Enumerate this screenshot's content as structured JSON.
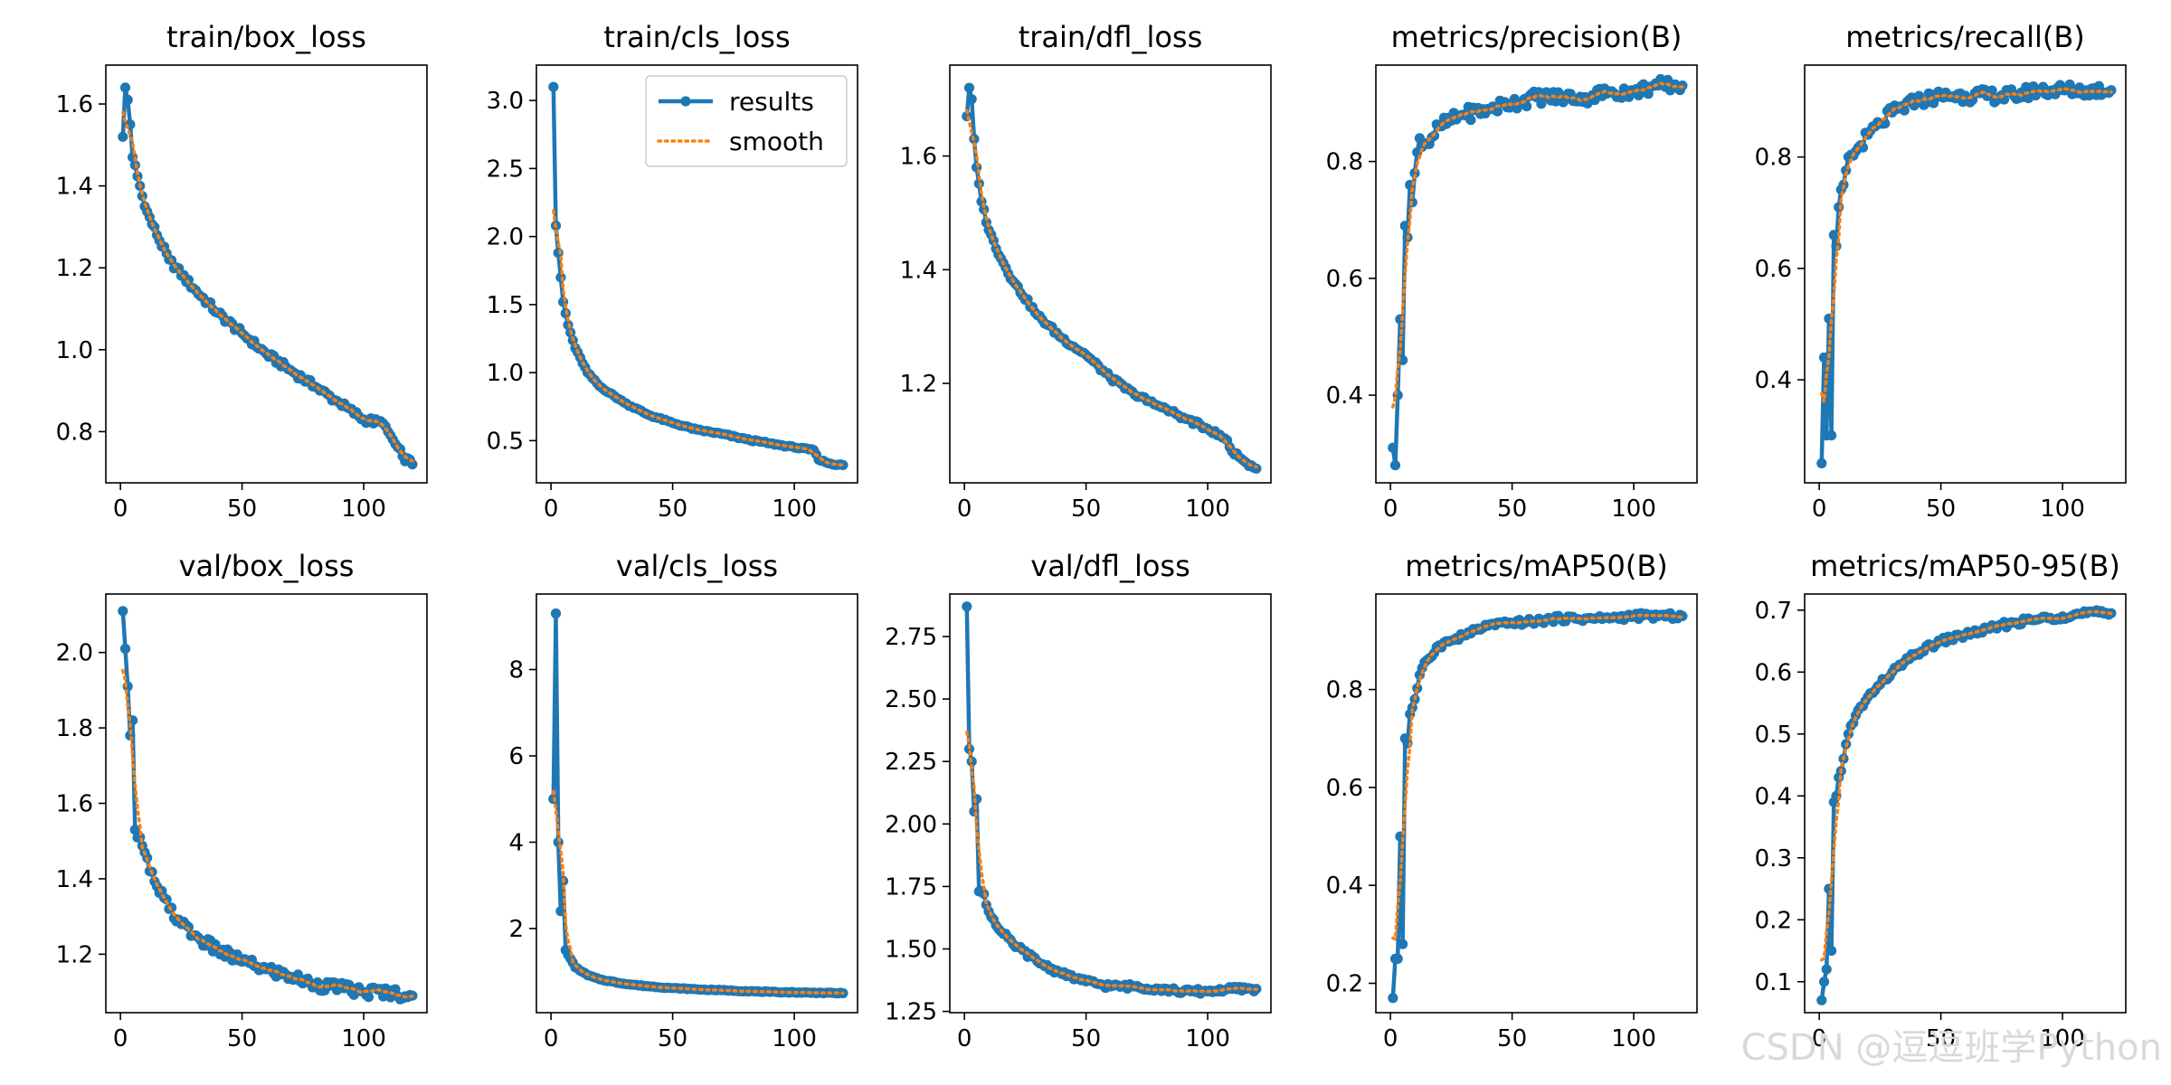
{
  "colors": {
    "results": "#1f77b4",
    "smooth": "#ff7f0e"
  },
  "watermark": "CSDN @逗逗班学Python",
  "legend": {
    "entries": [
      "results",
      "smooth"
    ],
    "placement": "upper-right",
    "panel": 1
  },
  "chart_data": [
    {
      "type": "line",
      "title": "train/box_loss",
      "xlim": [
        -6,
        126
      ],
      "ylim": [
        0.675,
        1.695
      ],
      "xticks": [
        0,
        50,
        100
      ],
      "yticks": [
        0.8,
        1.0,
        1.2,
        1.4,
        1.6
      ],
      "ytick_labels": [
        "0.8",
        "1.0",
        "1.2",
        "1.4",
        "1.6"
      ],
      "x_end": 120,
      "anchors": [
        [
          1,
          1.52
        ],
        [
          2,
          1.64
        ],
        [
          3,
          1.61
        ],
        [
          4,
          1.55
        ],
        [
          5,
          1.47
        ],
        [
          8,
          1.4
        ],
        [
          10,
          1.35
        ],
        [
          15,
          1.28
        ],
        [
          20,
          1.22
        ],
        [
          30,
          1.15
        ],
        [
          40,
          1.09
        ],
        [
          50,
          1.04
        ],
        [
          60,
          0.99
        ],
        [
          70,
          0.95
        ],
        [
          80,
          0.91
        ],
        [
          90,
          0.87
        ],
        [
          100,
          0.83
        ],
        [
          108,
          0.82
        ],
        [
          110,
          0.8
        ],
        [
          113,
          0.77
        ],
        [
          116,
          0.74
        ],
        [
          120,
          0.72
        ]
      ],
      "noise": 0.008
    },
    {
      "type": "line",
      "title": "train/cls_loss",
      "xlim": [
        -6,
        126
      ],
      "ylim": [
        0.19,
        3.26
      ],
      "xticks": [
        0,
        50,
        100
      ],
      "yticks": [
        0.5,
        1.0,
        1.5,
        2.0,
        2.5,
        3.0
      ],
      "ytick_labels": [
        "0.5",
        "1.0",
        "1.5",
        "2.0",
        "2.5",
        "3.0"
      ],
      "x_end": 120,
      "anchors": [
        [
          1,
          3.1
        ],
        [
          2,
          2.08
        ],
        [
          3,
          1.88
        ],
        [
          4,
          1.7
        ],
        [
          5,
          1.52
        ],
        [
          7,
          1.35
        ],
        [
          10,
          1.18
        ],
        [
          15,
          1.0
        ],
        [
          20,
          0.9
        ],
        [
          30,
          0.78
        ],
        [
          40,
          0.69
        ],
        [
          50,
          0.63
        ],
        [
          60,
          0.58
        ],
        [
          70,
          0.55
        ],
        [
          80,
          0.51
        ],
        [
          90,
          0.48
        ],
        [
          100,
          0.45
        ],
        [
          108,
          0.43
        ],
        [
          110,
          0.36
        ],
        [
          115,
          0.33
        ],
        [
          120,
          0.32
        ]
      ],
      "noise": 0.006
    },
    {
      "type": "line",
      "title": "train/dfl_loss",
      "xlim": [
        -6,
        126
      ],
      "ylim": [
        1.025,
        1.76
      ],
      "xticks": [
        0,
        50,
        100
      ],
      "yticks": [
        1.2,
        1.4,
        1.6
      ],
      "ytick_labels": [
        "1.2",
        "1.4",
        "1.6"
      ],
      "x_end": 120,
      "anchors": [
        [
          1,
          1.67
        ],
        [
          2,
          1.72
        ],
        [
          3,
          1.7
        ],
        [
          4,
          1.63
        ],
        [
          5,
          1.58
        ],
        [
          7,
          1.52
        ],
        [
          10,
          1.47
        ],
        [
          15,
          1.42
        ],
        [
          20,
          1.38
        ],
        [
          30,
          1.32
        ],
        [
          40,
          1.28
        ],
        [
          50,
          1.25
        ],
        [
          60,
          1.21
        ],
        [
          70,
          1.18
        ],
        [
          80,
          1.16
        ],
        [
          90,
          1.14
        ],
        [
          100,
          1.12
        ],
        [
          108,
          1.1
        ],
        [
          110,
          1.08
        ],
        [
          113,
          1.07
        ],
        [
          116,
          1.06
        ],
        [
          120,
          1.05
        ]
      ],
      "noise": 0.004
    },
    {
      "type": "line",
      "title": "metrics/precision(B)",
      "xlim": [
        -6,
        126
      ],
      "ylim": [
        0.25,
        0.965
      ],
      "xticks": [
        0,
        50,
        100
      ],
      "yticks": [
        0.4,
        0.6,
        0.8
      ],
      "ytick_labels": [
        "0.4",
        "0.6",
        "0.8"
      ],
      "x_end": 120,
      "anchors": [
        [
          1,
          0.31
        ],
        [
          2,
          0.28
        ],
        [
          3,
          0.4
        ],
        [
          4,
          0.53
        ],
        [
          5,
          0.46
        ],
        [
          6,
          0.69
        ],
        [
          7,
          0.67
        ],
        [
          8,
          0.76
        ],
        [
          9,
          0.73
        ],
        [
          10,
          0.78
        ],
        [
          12,
          0.84
        ],
        [
          15,
          0.83
        ],
        [
          20,
          0.86
        ],
        [
          25,
          0.87
        ],
        [
          30,
          0.88
        ],
        [
          40,
          0.89
        ],
        [
          50,
          0.9
        ],
        [
          60,
          0.91
        ],
        [
          70,
          0.91
        ],
        [
          80,
          0.91
        ],
        [
          90,
          0.92
        ],
        [
          100,
          0.92
        ],
        [
          110,
          0.93
        ],
        [
          120,
          0.93
        ]
      ],
      "noise": 0.012
    },
    {
      "type": "line",
      "title": "metrics/recall(B)",
      "xlim": [
        -6,
        126
      ],
      "ylim": [
        0.215,
        0.965
      ],
      "xticks": [
        0,
        50,
        100
      ],
      "yticks": [
        0.4,
        0.6,
        0.8
      ],
      "ytick_labels": [
        "0.4",
        "0.6",
        "0.8"
      ],
      "x_end": 120,
      "anchors": [
        [
          1,
          0.25
        ],
        [
          2,
          0.44
        ],
        [
          3,
          0.3
        ],
        [
          4,
          0.51
        ],
        [
          5,
          0.3
        ],
        [
          6,
          0.66
        ],
        [
          7,
          0.64
        ],
        [
          8,
          0.71
        ],
        [
          10,
          0.75
        ],
        [
          12,
          0.8
        ],
        [
          15,
          0.81
        ],
        [
          20,
          0.84
        ],
        [
          25,
          0.86
        ],
        [
          30,
          0.88
        ],
        [
          40,
          0.9
        ],
        [
          50,
          0.91
        ],
        [
          60,
          0.91
        ],
        [
          70,
          0.91
        ],
        [
          80,
          0.91
        ],
        [
          90,
          0.92
        ],
        [
          100,
          0.92
        ],
        [
          110,
          0.92
        ],
        [
          120,
          0.92
        ]
      ],
      "noise": 0.012
    },
    {
      "type": "line",
      "title": "val/box_loss",
      "xlim": [
        -6,
        126
      ],
      "ylim": [
        1.045,
        2.155
      ],
      "xticks": [
        0,
        50,
        100
      ],
      "yticks": [
        1.2,
        1.4,
        1.6,
        1.8,
        2.0
      ],
      "ytick_labels": [
        "1.2",
        "1.4",
        "1.6",
        "1.8",
        "2.0"
      ],
      "x_end": 120,
      "anchors": [
        [
          1,
          2.11
        ],
        [
          2,
          2.01
        ],
        [
          3,
          1.91
        ],
        [
          4,
          1.78
        ],
        [
          5,
          1.82
        ],
        [
          6,
          1.53
        ],
        [
          8,
          1.51
        ],
        [
          10,
          1.47
        ],
        [
          12,
          1.42
        ],
        [
          15,
          1.38
        ],
        [
          20,
          1.32
        ],
        [
          25,
          1.28
        ],
        [
          30,
          1.25
        ],
        [
          40,
          1.21
        ],
        [
          50,
          1.18
        ],
        [
          60,
          1.16
        ],
        [
          70,
          1.14
        ],
        [
          80,
          1.12
        ],
        [
          90,
          1.11
        ],
        [
          100,
          1.1
        ],
        [
          110,
          1.1
        ],
        [
          120,
          1.09
        ]
      ],
      "noise": 0.015
    },
    {
      "type": "line",
      "title": "val/cls_loss",
      "xlim": [
        -6,
        126
      ],
      "ylim": [
        0.05,
        9.75
      ],
      "xticks": [
        0,
        50,
        100
      ],
      "yticks": [
        2,
        4,
        6,
        8
      ],
      "ytick_labels": [
        "2",
        "4",
        "6",
        "8"
      ],
      "x_end": 120,
      "anchors": [
        [
          1,
          5.0
        ],
        [
          2,
          9.3
        ],
        [
          3,
          4.0
        ],
        [
          4,
          2.4
        ],
        [
          5,
          3.1
        ],
        [
          6,
          1.5
        ],
        [
          8,
          1.3
        ],
        [
          10,
          1.1
        ],
        [
          15,
          0.92
        ],
        [
          20,
          0.82
        ],
        [
          30,
          0.72
        ],
        [
          40,
          0.66
        ],
        [
          50,
          0.62
        ],
        [
          60,
          0.59
        ],
        [
          70,
          0.57
        ],
        [
          80,
          0.55
        ],
        [
          90,
          0.53
        ],
        [
          100,
          0.52
        ],
        [
          110,
          0.51
        ],
        [
          120,
          0.5
        ]
      ],
      "noise": 0.01
    },
    {
      "type": "line",
      "title": "val/dfl_loss",
      "xlim": [
        -6,
        126
      ],
      "ylim": [
        1.245,
        2.92
      ],
      "xticks": [
        0,
        50,
        100
      ],
      "yticks": [
        1.25,
        1.5,
        1.75,
        2.0,
        2.25,
        2.5,
        2.75
      ],
      "ytick_labels": [
        "1.25",
        "1.50",
        "1.75",
        "2.00",
        "2.25",
        "2.50",
        "2.75"
      ],
      "x_end": 120,
      "anchors": [
        [
          1,
          2.87
        ],
        [
          2,
          2.3
        ],
        [
          3,
          2.25
        ],
        [
          4,
          2.05
        ],
        [
          5,
          2.1
        ],
        [
          6,
          1.73
        ],
        [
          8,
          1.72
        ],
        [
          10,
          1.65
        ],
        [
          15,
          1.57
        ],
        [
          20,
          1.52
        ],
        [
          30,
          1.45
        ],
        [
          40,
          1.4
        ],
        [
          50,
          1.37
        ],
        [
          60,
          1.35
        ],
        [
          70,
          1.35
        ],
        [
          80,
          1.34
        ],
        [
          90,
          1.33
        ],
        [
          100,
          1.33
        ],
        [
          110,
          1.34
        ],
        [
          120,
          1.34
        ]
      ],
      "noise": 0.01
    },
    {
      "type": "line",
      "title": "metrics/mAP50(B)",
      "xlim": [
        -6,
        126
      ],
      "ylim": [
        0.14,
        0.995
      ],
      "xticks": [
        0,
        50,
        100
      ],
      "yticks": [
        0.2,
        0.4,
        0.6,
        0.8
      ],
      "ytick_labels": [
        "0.2",
        "0.4",
        "0.6",
        "0.8"
      ],
      "x_end": 120,
      "anchors": [
        [
          1,
          0.17
        ],
        [
          2,
          0.25
        ],
        [
          3,
          0.25
        ],
        [
          4,
          0.5
        ],
        [
          5,
          0.28
        ],
        [
          6,
          0.7
        ],
        [
          7,
          0.69
        ],
        [
          8,
          0.75
        ],
        [
          10,
          0.78
        ],
        [
          12,
          0.83
        ],
        [
          15,
          0.86
        ],
        [
          20,
          0.89
        ],
        [
          25,
          0.9
        ],
        [
          30,
          0.91
        ],
        [
          40,
          0.93
        ],
        [
          50,
          0.935
        ],
        [
          60,
          0.94
        ],
        [
          70,
          0.945
        ],
        [
          80,
          0.945
        ],
        [
          90,
          0.945
        ],
        [
          100,
          0.95
        ],
        [
          110,
          0.95
        ],
        [
          120,
          0.95
        ]
      ],
      "noise": 0.006
    },
    {
      "type": "line",
      "title": "metrics/mAP50-95(B)",
      "xlim": [
        -6,
        126
      ],
      "ylim": [
        0.05,
        0.726
      ],
      "xticks": [
        0,
        50,
        100
      ],
      "yticks": [
        0.1,
        0.2,
        0.3,
        0.4,
        0.5,
        0.6,
        0.7
      ],
      "ytick_labels": [
        "0.1",
        "0.2",
        "0.3",
        "0.4",
        "0.5",
        "0.6",
        "0.7"
      ],
      "x_end": 120,
      "anchors": [
        [
          1,
          0.07
        ],
        [
          2,
          0.1
        ],
        [
          3,
          0.12
        ],
        [
          4,
          0.25
        ],
        [
          5,
          0.15
        ],
        [
          6,
          0.39
        ],
        [
          7,
          0.4
        ],
        [
          8,
          0.43
        ],
        [
          10,
          0.46
        ],
        [
          12,
          0.5
        ],
        [
          15,
          0.53
        ],
        [
          20,
          0.56
        ],
        [
          25,
          0.58
        ],
        [
          30,
          0.6
        ],
        [
          40,
          0.63
        ],
        [
          50,
          0.65
        ],
        [
          60,
          0.66
        ],
        [
          70,
          0.67
        ],
        [
          80,
          0.68
        ],
        [
          90,
          0.685
        ],
        [
          100,
          0.69
        ],
        [
          110,
          0.695
        ],
        [
          120,
          0.695
        ]
      ],
      "noise": 0.005
    }
  ]
}
